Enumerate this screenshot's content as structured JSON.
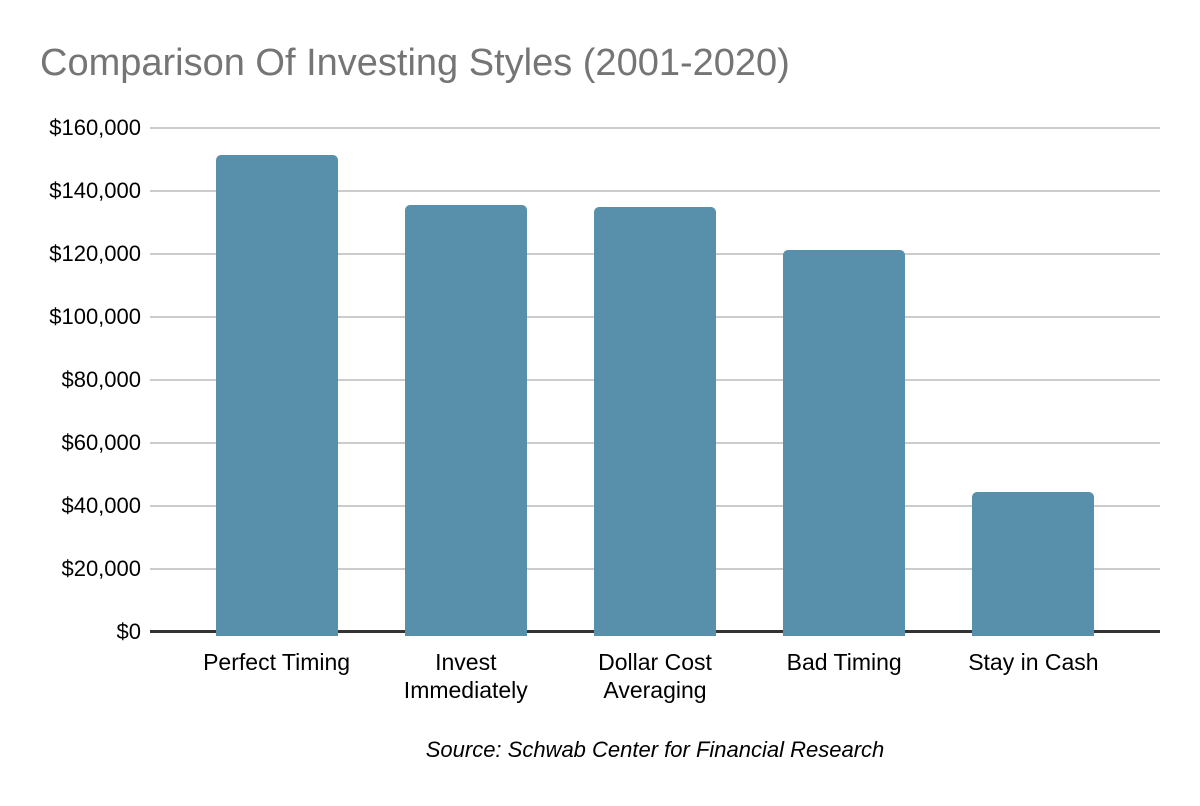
{
  "source": "Source: Schwab Center for Financial Research",
  "chart_data": {
    "type": "bar",
    "title": "Comparison Of Investing Styles (2001-2020)",
    "categories": [
      "Perfect Timing",
      "Invest\nImmediately",
      "Dollar Cost\nAveraging",
      "Bad Timing",
      "Stay in Cash"
    ],
    "values": [
      151391,
      135471,
      134856,
      121171,
      44438
    ],
    "xlabel": "",
    "ylabel": "",
    "ylim": [
      0,
      160000
    ],
    "yticks": [
      {
        "value": 0,
        "label": "$0"
      },
      {
        "value": 20000,
        "label": "$20,000"
      },
      {
        "value": 40000,
        "label": "$40,000"
      },
      {
        "value": 60000,
        "label": "$60,000"
      },
      {
        "value": 80000,
        "label": "$80,000"
      },
      {
        "value": 100000,
        "label": "$100,000"
      },
      {
        "value": 120000,
        "label": "$120,000"
      },
      {
        "value": 140000,
        "label": "$140,000"
      },
      {
        "value": 160000,
        "label": "$160,000"
      }
    ],
    "grid": true,
    "legend": "none",
    "colors": {
      "bar": "#5890AC",
      "title": "#757575",
      "gridline": "#CCCCCC",
      "axis_line": "#333333",
      "tick_text": "#000000"
    }
  }
}
